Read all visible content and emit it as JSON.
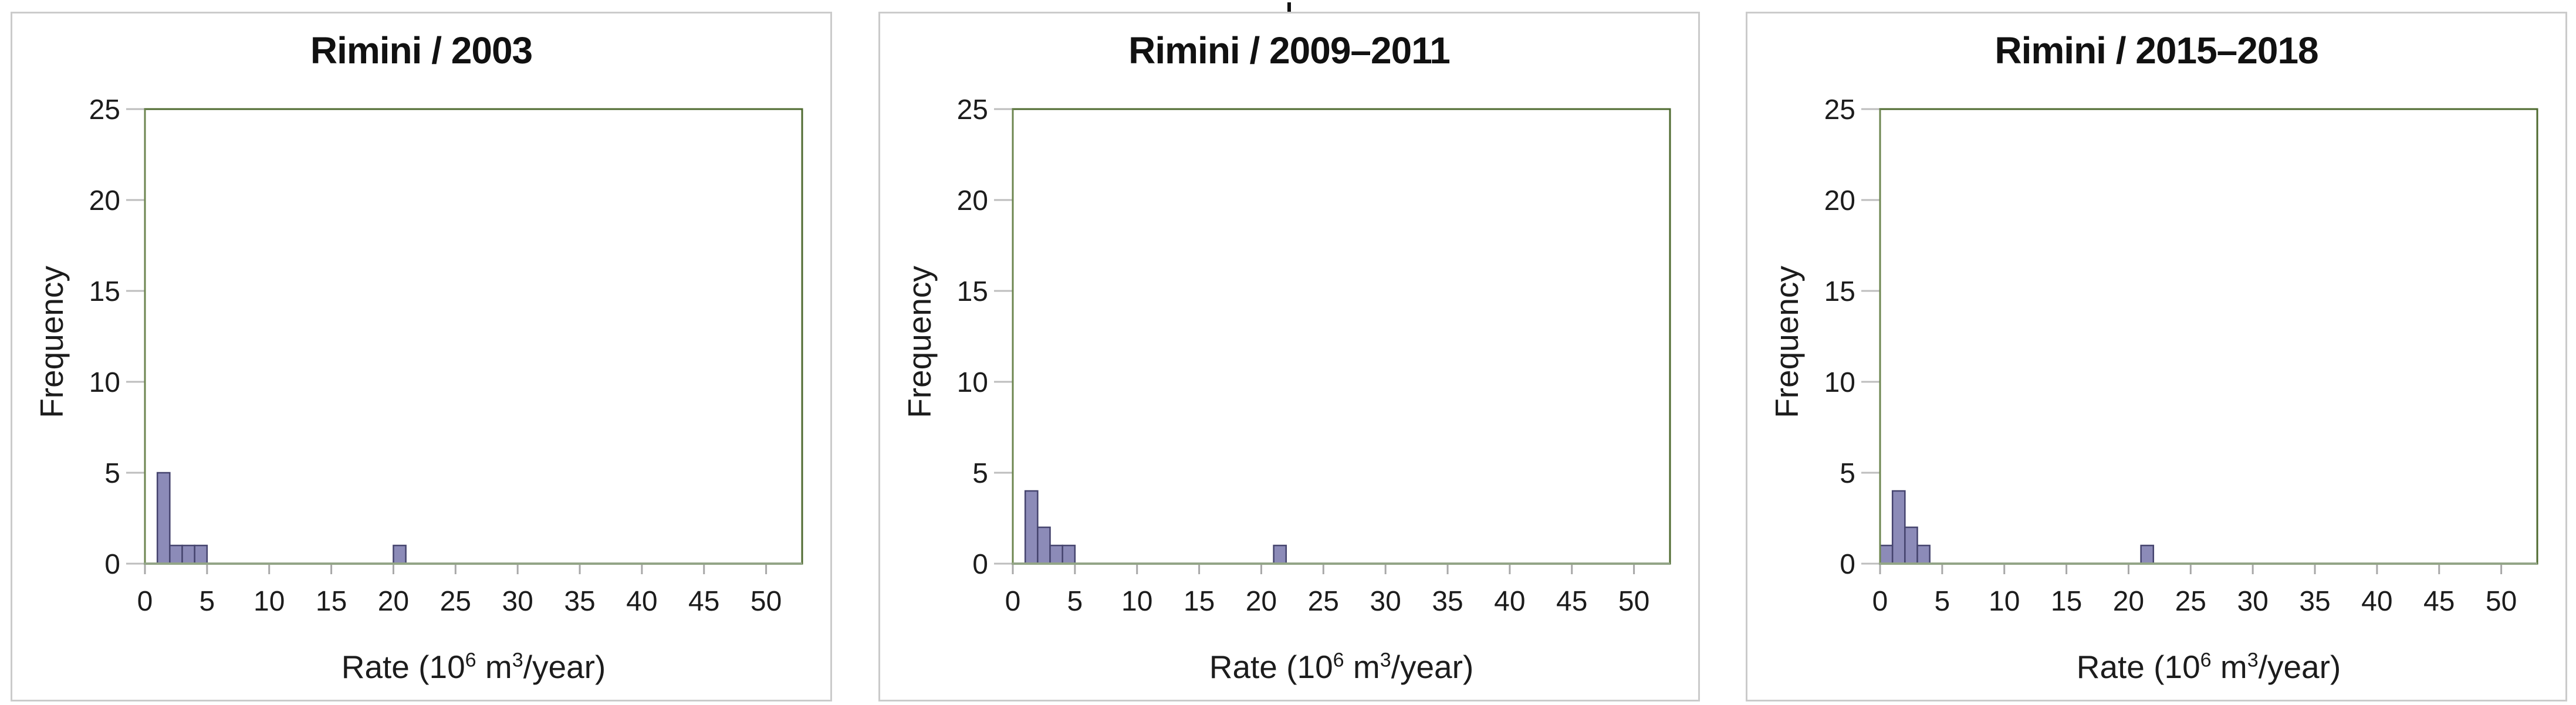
{
  "figure": {
    "description_titles": [
      "Rimini / 2003",
      "Rimini / 2009–2011",
      "Rimini / 2015–2018"
    ]
  },
  "style": {
    "background": "#ffffff",
    "panel_border": "#cbcbcb",
    "frame": "#4e6a2f",
    "x_axis_line": "#93a587",
    "y_axis_line": "#6d8650",
    "x_tick": "#a8a8a8",
    "y_tick": "#bdbdbd",
    "bar_fill": "#8c8bb8",
    "bar_stroke": "#45446e",
    "text": "#1c1c1c"
  },
  "chart_data": [
    {
      "type": "bar",
      "subtype": "histogram",
      "title": "Rimini / 2003",
      "ylabel": "Frequency",
      "xlabel": "Rate (10⁶ m³/year)",
      "xlabel_parts": [
        {
          "text": "Rate (10"
        },
        {
          "text": "6",
          "sup": true
        },
        {
          "text": " m"
        },
        {
          "text": "3",
          "sup": true
        },
        {
          "text": "/year)"
        }
      ],
      "xlim": [
        0,
        52.9
      ],
      "ylim": [
        0,
        25
      ],
      "xticks": [
        0,
        5,
        10,
        15,
        20,
        25,
        30,
        35,
        40,
        45,
        50
      ],
      "yticks": [
        0,
        5,
        10,
        15,
        20,
        25
      ],
      "grid": false,
      "legend": false,
      "bins": [
        {
          "x0": 1,
          "x1": 2,
          "frequency": 5
        },
        {
          "x0": 2,
          "x1": 3,
          "frequency": 1
        },
        {
          "x0": 3,
          "x1": 4,
          "frequency": 1
        },
        {
          "x0": 4,
          "x1": 5,
          "frequency": 1
        },
        {
          "x0": 20,
          "x1": 21,
          "frequency": 1
        }
      ]
    },
    {
      "type": "bar",
      "subtype": "histogram",
      "title": "Rimini / 2009–2011",
      "ylabel": "Frequency",
      "xlabel": "Rate (10⁶ m³/year)",
      "xlabel_parts": [
        {
          "text": "Rate (10"
        },
        {
          "text": "6",
          "sup": true
        },
        {
          "text": " m"
        },
        {
          "text": "3",
          "sup": true
        },
        {
          "text": "/year)"
        }
      ],
      "xlim": [
        0,
        52.9
      ],
      "ylim": [
        0,
        25
      ],
      "xticks": [
        0,
        5,
        10,
        15,
        20,
        25,
        30,
        35,
        40,
        45,
        50
      ],
      "yticks": [
        0,
        5,
        10,
        15,
        20,
        25
      ],
      "grid": false,
      "legend": false,
      "bins": [
        {
          "x0": 1,
          "x1": 2,
          "frequency": 4
        },
        {
          "x0": 2,
          "x1": 3,
          "frequency": 2
        },
        {
          "x0": 3,
          "x1": 4,
          "frequency": 1
        },
        {
          "x0": 4,
          "x1": 5,
          "frequency": 1
        },
        {
          "x0": 21,
          "x1": 22,
          "frequency": 1
        }
      ]
    },
    {
      "type": "bar",
      "subtype": "histogram",
      "title": "Rimini / 2015–2018",
      "ylabel": "Frequency",
      "xlabel": "Rate (10⁶ m³/year)",
      "xlabel_parts": [
        {
          "text": "Rate (10"
        },
        {
          "text": "6",
          "sup": true
        },
        {
          "text": " m"
        },
        {
          "text": "3",
          "sup": true
        },
        {
          "text": "/year)"
        }
      ],
      "xlim": [
        0,
        52.9
      ],
      "ylim": [
        0,
        25
      ],
      "xticks": [
        0,
        5,
        10,
        15,
        20,
        25,
        30,
        35,
        40,
        45,
        50
      ],
      "yticks": [
        0,
        5,
        10,
        15,
        20,
        25
      ],
      "grid": false,
      "legend": false,
      "bins": [
        {
          "x0": 0,
          "x1": 1,
          "frequency": 1
        },
        {
          "x0": 1,
          "x1": 2,
          "frequency": 4
        },
        {
          "x0": 2,
          "x1": 3,
          "frequency": 2
        },
        {
          "x0": 3,
          "x1": 4,
          "frequency": 1
        },
        {
          "x0": 21,
          "x1": 22,
          "frequency": 1
        }
      ]
    }
  ]
}
